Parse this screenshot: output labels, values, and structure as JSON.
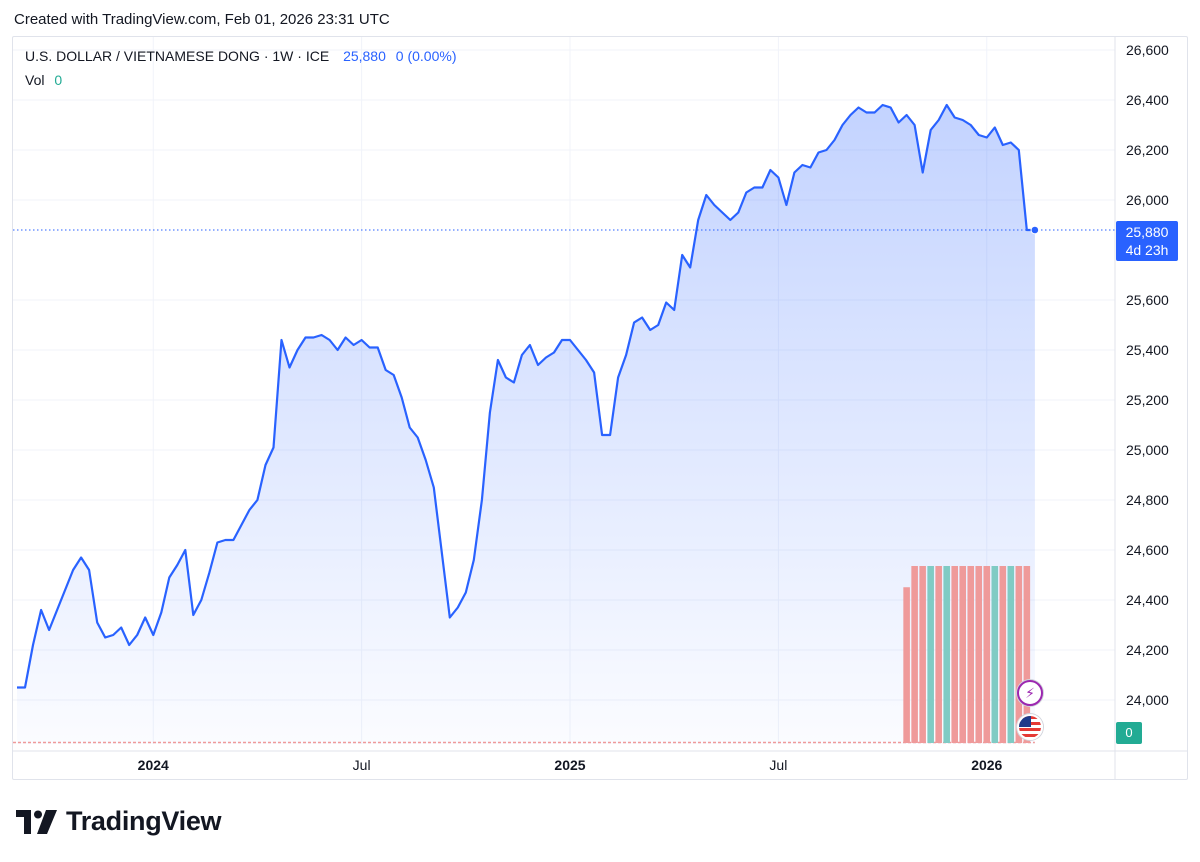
{
  "credit": "Created with TradingView.com, Feb 01, 2026 23:31 UTC",
  "legend": {
    "symbol": "U.S. DOLLAR / VIETNAMESE DONG · 1W · ICE",
    "price": "25,880",
    "change": "0 (0.00%)",
    "vol_label": "Vol",
    "vol_value": "0"
  },
  "price_tag": {
    "price": "25,880",
    "countdown": "4d 23h"
  },
  "vol_tag": "0",
  "logo_text": "TradingView",
  "colors": {
    "line": "#2962ff",
    "volume_red": "#ef9a9a",
    "volume_green": "#80cbc4",
    "grid": "#f0f3fa"
  },
  "icons": [
    "lightning-event-icon",
    "us-flag-event-icon",
    "tradingview-logo-icon"
  ],
  "chart_data": {
    "type": "area",
    "xlabel": "",
    "ylabel": "",
    "y_ticks": [
      "26,600",
      "26,400",
      "26,200",
      "26,000",
      "25,600",
      "25,400",
      "25,200",
      "25,000",
      "24,800",
      "24,600",
      "24,400",
      "24,200",
      "24,000"
    ],
    "x_ticks": [
      {
        "label": "2024",
        "x": 0,
        "bold": true
      },
      {
        "label": "Jul",
        "x": 26,
        "bold": false
      },
      {
        "label": "2025",
        "x": 52,
        "bold": true
      },
      {
        "label": "Jul",
        "x": 78,
        "bold": false
      },
      {
        "label": "2026",
        "x": 104,
        "bold": true
      }
    ],
    "ylim": [
      23800,
      26650
    ],
    "xlim": [
      -17.5,
      120
    ],
    "grid": true,
    "last_price": 25880,
    "series": [
      {
        "values": [
          [
            -17,
            24050
          ],
          [
            -16,
            24050
          ],
          [
            -15,
            24220
          ],
          [
            -14,
            24360
          ],
          [
            -13,
            24280
          ],
          [
            -12,
            24360
          ],
          [
            -11,
            24440
          ],
          [
            -10,
            24520
          ],
          [
            -9,
            24570
          ],
          [
            -8,
            24520
          ],
          [
            -7,
            24310
          ],
          [
            -6,
            24250
          ],
          [
            -5,
            24260
          ],
          [
            -4,
            24290
          ],
          [
            -3,
            24220
          ],
          [
            -2,
            24260
          ],
          [
            -1,
            24330
          ],
          [
            0,
            24260
          ],
          [
            1,
            24350
          ],
          [
            2,
            24490
          ],
          [
            3,
            24540
          ],
          [
            4,
            24600
          ],
          [
            5,
            24340
          ],
          [
            6,
            24400
          ],
          [
            7,
            24510
          ],
          [
            8,
            24630
          ],
          [
            9,
            24640
          ],
          [
            10,
            24640
          ],
          [
            11,
            24700
          ],
          [
            12,
            24760
          ],
          [
            13,
            24800
          ],
          [
            14,
            24940
          ],
          [
            15,
            25010
          ],
          [
            16,
            25440
          ],
          [
            17,
            25330
          ],
          [
            18,
            25400
          ],
          [
            19,
            25450
          ],
          [
            20,
            25450
          ],
          [
            21,
            25460
          ],
          [
            22,
            25440
          ],
          [
            23,
            25400
          ],
          [
            24,
            25450
          ],
          [
            25,
            25420
          ],
          [
            26,
            25440
          ],
          [
            27,
            25410
          ],
          [
            28,
            25410
          ],
          [
            29,
            25320
          ],
          [
            30,
            25300
          ],
          [
            31,
            25210
          ],
          [
            32,
            25090
          ],
          [
            33,
            25050
          ],
          [
            34,
            24960
          ],
          [
            35,
            24850
          ],
          [
            36,
            24590
          ],
          [
            37,
            24330
          ],
          [
            38,
            24370
          ],
          [
            39,
            24430
          ],
          [
            40,
            24560
          ],
          [
            41,
            24800
          ],
          [
            42,
            25150
          ],
          [
            43,
            25360
          ],
          [
            44,
            25290
          ],
          [
            45,
            25270
          ],
          [
            46,
            25380
          ],
          [
            47,
            25420
          ],
          [
            48,
            25340
          ],
          [
            49,
            25370
          ],
          [
            50,
            25390
          ],
          [
            51,
            25440
          ],
          [
            52,
            25440
          ],
          [
            53,
            25400
          ],
          [
            54,
            25360
          ],
          [
            55,
            25310
          ],
          [
            56,
            25060
          ],
          [
            57,
            25060
          ],
          [
            58,
            25290
          ],
          [
            59,
            25380
          ],
          [
            60,
            25510
          ],
          [
            61,
            25530
          ],
          [
            62,
            25480
          ],
          [
            63,
            25500
          ],
          [
            64,
            25590
          ],
          [
            65,
            25560
          ],
          [
            66,
            25780
          ],
          [
            67,
            25730
          ],
          [
            68,
            25920
          ],
          [
            69,
            26020
          ],
          [
            70,
            25980
          ],
          [
            71,
            25950
          ],
          [
            72,
            25920
          ],
          [
            73,
            25950
          ],
          [
            74,
            26030
          ],
          [
            75,
            26050
          ],
          [
            76,
            26050
          ],
          [
            77,
            26120
          ],
          [
            78,
            26090
          ],
          [
            79,
            25980
          ],
          [
            80,
            26110
          ],
          [
            81,
            26140
          ],
          [
            82,
            26130
          ],
          [
            83,
            26190
          ],
          [
            84,
            26200
          ],
          [
            85,
            26240
          ],
          [
            86,
            26300
          ],
          [
            87,
            26340
          ],
          [
            88,
            26370
          ],
          [
            89,
            26350
          ],
          [
            90,
            26350
          ],
          [
            91,
            26380
          ],
          [
            92,
            26370
          ],
          [
            93,
            26310
          ],
          [
            94,
            26340
          ],
          [
            95,
            26300
          ],
          [
            96,
            26110
          ],
          [
            97,
            26280
          ],
          [
            98,
            26320
          ],
          [
            99,
            26380
          ],
          [
            100,
            26330
          ],
          [
            101,
            26320
          ],
          [
            102,
            26300
          ],
          [
            103,
            26260
          ],
          [
            104,
            26250
          ],
          [
            105,
            26290
          ],
          [
            106,
            26220
          ],
          [
            107,
            26230
          ],
          [
            108,
            26200
          ],
          [
            109,
            25880
          ],
          [
            110,
            25880
          ]
        ]
      }
    ],
    "volume": {
      "max": 1,
      "bars": [
        [
          94,
          0.88,
          "red"
        ],
        [
          95,
          1,
          "red"
        ],
        [
          96,
          1,
          "red"
        ],
        [
          97,
          1,
          "green"
        ],
        [
          98,
          1,
          "red"
        ],
        [
          99,
          1,
          "green"
        ],
        [
          100,
          1,
          "red"
        ],
        [
          101,
          1,
          "red"
        ],
        [
          102,
          1,
          "red"
        ],
        [
          103,
          1,
          "red"
        ],
        [
          104,
          1,
          "red"
        ],
        [
          105,
          1,
          "green"
        ],
        [
          106,
          1,
          "red"
        ],
        [
          107,
          1,
          "green"
        ],
        [
          108,
          1,
          "red"
        ],
        [
          109,
          1,
          "red"
        ]
      ]
    }
  }
}
